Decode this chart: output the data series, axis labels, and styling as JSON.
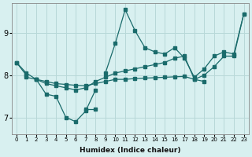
{
  "xlabel": "Humidex (Indice chaleur)",
  "bg_color": "#d8f0f0",
  "grid_color": "#b8d8d8",
  "line_color": "#1a6b6b",
  "xlim": [
    -0.5,
    23.5
  ],
  "ylim": [
    6.6,
    9.7
  ],
  "yticks": [
    7,
    8,
    9
  ],
  "xticks": [
    0,
    1,
    2,
    3,
    4,
    5,
    6,
    7,
    8,
    9,
    10,
    11,
    12,
    13,
    14,
    15,
    16,
    17,
    18,
    19,
    20,
    21,
    22,
    23
  ],
  "series": [
    {
      "x": [
        0,
        1
      ],
      "y": [
        8.3,
        8.0
      ]
    },
    {
      "x": [
        0,
        1,
        2,
        3,
        4,
        5,
        6,
        7,
        8,
        9,
        10,
        11,
        12,
        13,
        14,
        15,
        16,
        17,
        18,
        19,
        20,
        21,
        22,
        23
      ],
      "y": [
        8.3,
        8.05,
        7.9,
        7.8,
        7.75,
        7.7,
        7.65,
        7.7,
        7.85,
        7.95,
        8.05,
        8.1,
        8.15,
        8.2,
        8.25,
        8.3,
        8.4,
        8.45,
        7.9,
        8.0,
        8.2,
        8.45,
        8.45,
        9.45
      ]
    },
    {
      "x": [
        2,
        3,
        4,
        5,
        6,
        7,
        8
      ],
      "y": [
        7.9,
        7.55,
        7.5,
        7.0,
        6.9,
        7.15,
        7.65
      ]
    },
    {
      "x": [
        7,
        8
      ],
      "y": [
        7.2,
        7.2
      ]
    },
    {
      "x": [
        9,
        10,
        11,
        12,
        13,
        14,
        15,
        16,
        17,
        18,
        19,
        20,
        21,
        22,
        23
      ],
      "y": [
        8.05,
        8.75,
        9.55,
        9.05,
        8.65,
        8.55,
        8.5,
        8.65,
        8.4,
        7.95,
        8.15,
        8.45,
        8.55,
        8.5,
        9.45
      ]
    },
    {
      "x": [
        1,
        2,
        3,
        4,
        5,
        6,
        7,
        8,
        9,
        10,
        11,
        12,
        13,
        14,
        15,
        16,
        17,
        18,
        19
      ],
      "y": [
        7.95,
        7.9,
        7.85,
        7.8,
        7.78,
        7.76,
        7.75,
        7.8,
        7.85,
        7.9,
        7.9,
        7.92,
        7.93,
        7.94,
        7.95,
        7.96,
        7.97,
        7.9,
        7.85
      ]
    }
  ]
}
